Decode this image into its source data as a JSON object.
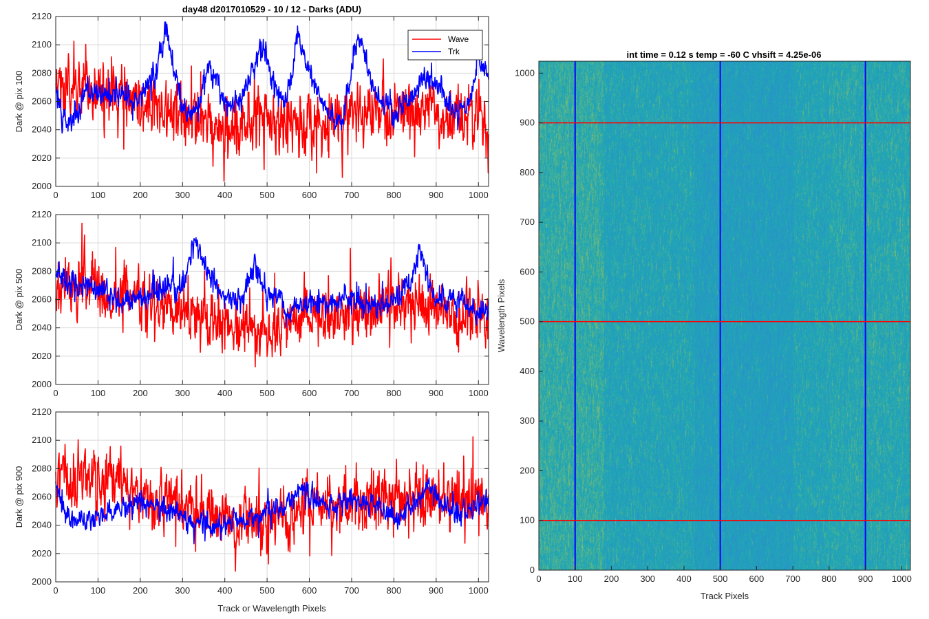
{
  "figure": {
    "suptitle": "day48 d2017010529 - 10 / 12 - Darks (ADU)",
    "shared_xlabel": "Track or Wavelength Pixels",
    "colors": {
      "wave": "#ff0000",
      "trk": "#0000ff",
      "grid": "#d9d9d9",
      "axes": "#262626"
    }
  },
  "chart_data": [
    {
      "type": "line",
      "ylabel": "Dark @ pix 100",
      "xlim": [
        0,
        1024
      ],
      "ylim": [
        2000,
        2120
      ],
      "xticks": [
        0,
        100,
        200,
        300,
        400,
        500,
        600,
        700,
        800,
        900,
        1000
      ],
      "yticks": [
        2000,
        2020,
        2040,
        2060,
        2080,
        2100,
        2120
      ],
      "grid": true,
      "legend": {
        "location": "top-right",
        "entries": [
          "Wave",
          "Trk"
        ]
      },
      "series": [
        {
          "name": "Wave",
          "color": "#ff0000",
          "noise": 13,
          "keypoints": [
            [
              0,
              2068
            ],
            [
              100,
              2068
            ],
            [
              200,
              2060
            ],
            [
              300,
              2050
            ],
            [
              400,
              2042
            ],
            [
              500,
              2044
            ],
            [
              600,
              2046
            ],
            [
              700,
              2050
            ],
            [
              800,
              2054
            ],
            [
              900,
              2050
            ],
            [
              1024,
              2045
            ]
          ]
        },
        {
          "name": "Trk",
          "color": "#0000ff",
          "noise": 5,
          "keypoints": [
            [
              0,
              2070
            ],
            [
              15,
              2045
            ],
            [
              40,
              2045
            ],
            [
              70,
              2065
            ],
            [
              150,
              2065
            ],
            [
              200,
              2062
            ],
            [
              240,
              2085
            ],
            [
              260,
              2110
            ],
            [
              290,
              2070
            ],
            [
              310,
              2048
            ],
            [
              340,
              2060
            ],
            [
              360,
              2085
            ],
            [
              380,
              2075
            ],
            [
              400,
              2060
            ],
            [
              430,
              2055
            ],
            [
              460,
              2075
            ],
            [
              490,
              2100
            ],
            [
              510,
              2075
            ],
            [
              540,
              2060
            ],
            [
              560,
              2080
            ],
            [
              570,
              2105
            ],
            [
              600,
              2080
            ],
            [
              640,
              2055
            ],
            [
              680,
              2048
            ],
            [
              705,
              2095
            ],
            [
              720,
              2105
            ],
            [
              750,
              2070
            ],
            [
              800,
              2050
            ],
            [
              870,
              2075
            ],
            [
              900,
              2075
            ],
            [
              950,
              2052
            ],
            [
              980,
              2060
            ],
            [
              1000,
              2092
            ],
            [
              1024,
              2078
            ]
          ]
        }
      ]
    },
    {
      "type": "line",
      "ylabel": "Dark @ pix 500",
      "xlim": [
        0,
        1024
      ],
      "ylim": [
        2000,
        2120
      ],
      "xticks": [
        0,
        100,
        200,
        300,
        400,
        500,
        600,
        700,
        800,
        900,
        1000
      ],
      "yticks": [
        2000,
        2020,
        2040,
        2060,
        2080,
        2100,
        2120
      ],
      "grid": true,
      "series": [
        {
          "name": "Wave",
          "color": "#ff0000",
          "noise": 12,
          "keypoints": [
            [
              0,
              2065
            ],
            [
              100,
              2066
            ],
            [
              200,
              2060
            ],
            [
              300,
              2052
            ],
            [
              400,
              2040
            ],
            [
              500,
              2038
            ],
            [
              600,
              2044
            ],
            [
              700,
              2050
            ],
            [
              800,
              2056
            ],
            [
              900,
              2052
            ],
            [
              1024,
              2048
            ]
          ]
        },
        {
          "name": "Trk",
          "color": "#0000ff",
          "noise": 5,
          "keypoints": [
            [
              0,
              2078
            ],
            [
              50,
              2070
            ],
            [
              100,
              2068
            ],
            [
              150,
              2058
            ],
            [
              200,
              2060
            ],
            [
              260,
              2068
            ],
            [
              300,
              2070
            ],
            [
              330,
              2100
            ],
            [
              370,
              2075
            ],
            [
              400,
              2062
            ],
            [
              440,
              2060
            ],
            [
              470,
              2085
            ],
            [
              500,
              2060
            ],
            [
              530,
              2065
            ],
            [
              550,
              2045
            ],
            [
              570,
              2055
            ],
            [
              600,
              2060
            ],
            [
              650,
              2058
            ],
            [
              700,
              2062
            ],
            [
              750,
              2055
            ],
            [
              800,
              2058
            ],
            [
              850,
              2080
            ],
            [
              860,
              2098
            ],
            [
              880,
              2075
            ],
            [
              900,
              2060
            ],
            [
              950,
              2060
            ],
            [
              1000,
              2050
            ],
            [
              1024,
              2052
            ]
          ]
        }
      ]
    },
    {
      "type": "line",
      "ylabel": "Dark @ pix 900",
      "xlim": [
        0,
        1024
      ],
      "ylim": [
        2000,
        2120
      ],
      "xticks": [
        0,
        100,
        200,
        300,
        400,
        500,
        600,
        700,
        800,
        900,
        1000
      ],
      "yticks": [
        2000,
        2020,
        2040,
        2060,
        2080,
        2100,
        2120
      ],
      "grid": true,
      "series": [
        {
          "name": "Wave",
          "color": "#ff0000",
          "noise": 13,
          "keypoints": [
            [
              0,
              2075
            ],
            [
              100,
              2076
            ],
            [
              200,
              2062
            ],
            [
              300,
              2052
            ],
            [
              400,
              2045
            ],
            [
              500,
              2042
            ],
            [
              600,
              2050
            ],
            [
              700,
              2055
            ],
            [
              800,
              2060
            ],
            [
              900,
              2060
            ],
            [
              1024,
              2058
            ]
          ]
        },
        {
          "name": "Trk",
          "color": "#0000ff",
          "noise": 5,
          "keypoints": [
            [
              0,
              2072
            ],
            [
              20,
              2050
            ],
            [
              50,
              2040
            ],
            [
              100,
              2045
            ],
            [
              150,
              2050
            ],
            [
              200,
              2055
            ],
            [
              250,
              2055
            ],
            [
              300,
              2045
            ],
            [
              350,
              2040
            ],
            [
              400,
              2042
            ],
            [
              450,
              2046
            ],
            [
              500,
              2050
            ],
            [
              560,
              2055
            ],
            [
              580,
              2068
            ],
            [
              600,
              2060
            ],
            [
              650,
              2055
            ],
            [
              700,
              2058
            ],
            [
              750,
              2055
            ],
            [
              800,
              2045
            ],
            [
              850,
              2055
            ],
            [
              880,
              2070
            ],
            [
              920,
              2055
            ],
            [
              960,
              2048
            ],
            [
              1000,
              2055
            ],
            [
              1024,
              2058
            ]
          ]
        }
      ]
    },
    {
      "type": "heatmap",
      "title": "int time = 0.12 s    temp = -60 C    vhsift = 4.25e-06",
      "xlabel": "Track Pixels",
      "ylabel": "Wavelength Pixels",
      "xlim": [
        0,
        1024
      ],
      "ylim": [
        0,
        1024
      ],
      "xticks": [
        0,
        100,
        200,
        300,
        400,
        500,
        600,
        700,
        800,
        900,
        1000
      ],
      "yticks": [
        0,
        100,
        200,
        300,
        400,
        500,
        600,
        700,
        800,
        900,
        1000
      ],
      "colormap": {
        "low": "#2b8ccf",
        "mid": "#1fa8b3",
        "high": "#b6c748"
      },
      "track_cuts": [
        100,
        500,
        900
      ],
      "wavelength_cuts": [
        100,
        500,
        900
      ],
      "track_cut_color": "#0000ff",
      "wavelength_cut_color": "#ff0000"
    }
  ]
}
